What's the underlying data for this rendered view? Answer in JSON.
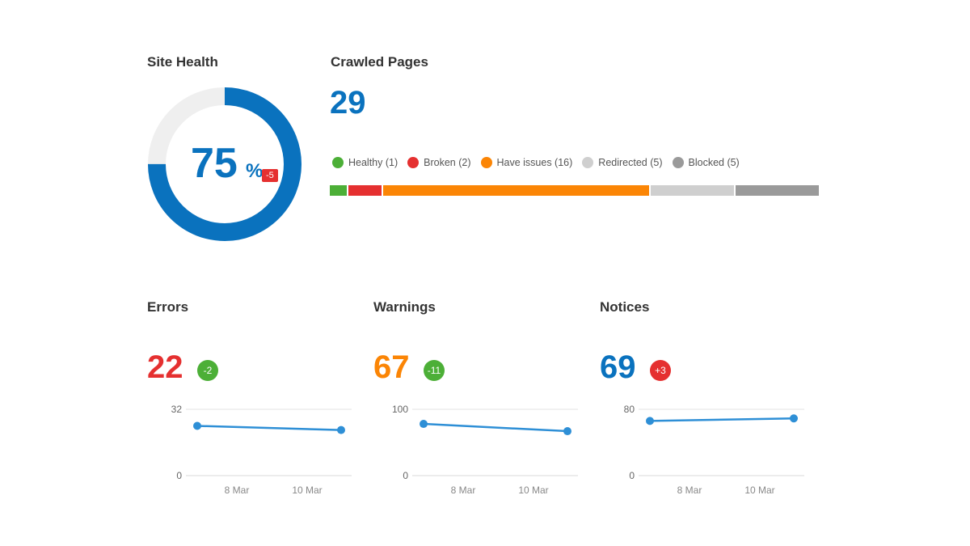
{
  "site_health": {
    "title": "Site Health",
    "value": "75",
    "unit": "%",
    "change": "-5",
    "percent": 75
  },
  "crawled": {
    "title": "Crawled Pages",
    "value": "29",
    "legend": [
      {
        "label": "Healthy (1)",
        "count": 1,
        "color": "#4caf37"
      },
      {
        "label": "Broken (2)",
        "count": 2,
        "color": "#e53030"
      },
      {
        "label": "Have issues (16)",
        "count": 16,
        "color": "#fb8505"
      },
      {
        "label": "Redirected (5)",
        "count": 5,
        "color": "#cfcfcf"
      },
      {
        "label": "Blocked (5)",
        "count": 5,
        "color": "#9a9a9a"
      }
    ]
  },
  "metrics": [
    {
      "title": "Errors",
      "value": "22",
      "change": "-2",
      "value_color": "#e53030",
      "change_color": "#4caf37",
      "ymax_label": "32",
      "ymin_label": "0",
      "ymax": 32,
      "points": [
        24,
        22
      ]
    },
    {
      "title": "Warnings",
      "value": "67",
      "change": "-11",
      "value_color": "#fb8505",
      "change_color": "#4caf37",
      "ymax_label": "100",
      "ymin_label": "0",
      "ymax": 100,
      "points": [
        78,
        67
      ]
    },
    {
      "title": "Notices",
      "value": "69",
      "change": "+3",
      "value_color": "#0a72be",
      "change_color": "#e53030",
      "ymax_label": "80",
      "ymin_label": "0",
      "ymax": 80,
      "points": [
        66,
        69
      ]
    }
  ],
  "x_labels": [
    "8 Mar",
    "10 Mar"
  ]
}
